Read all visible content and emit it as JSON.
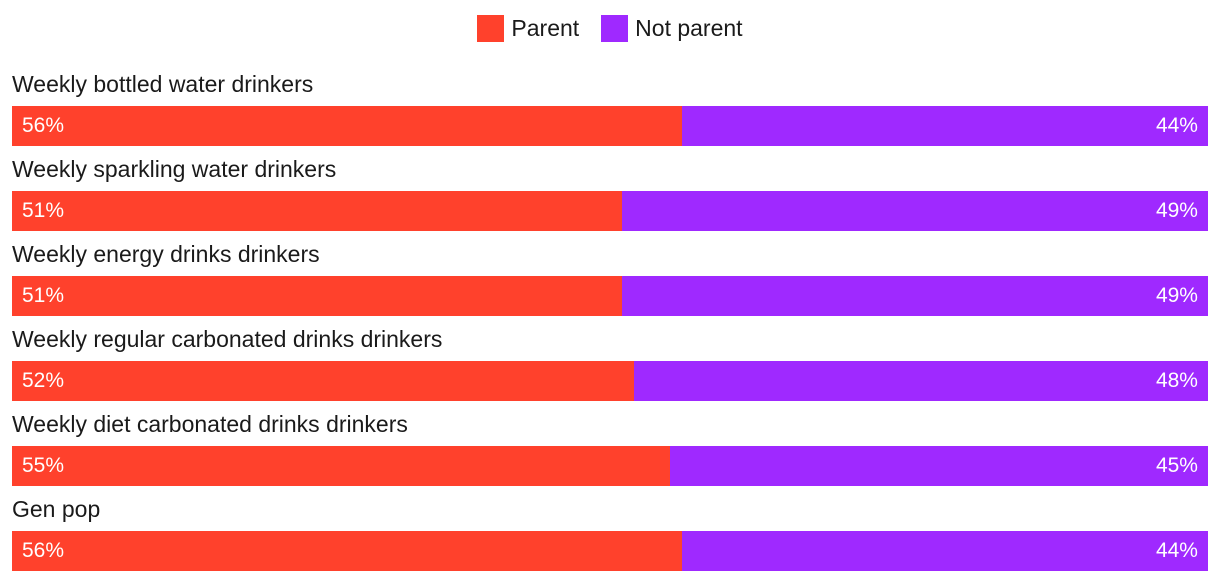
{
  "chart_data": {
    "type": "bar",
    "orientation": "horizontal",
    "stacked": "percent",
    "title": "",
    "xlabel": "",
    "ylabel": "",
    "legend_position": "top-center",
    "grid": false,
    "categories": [
      "Weekly bottled water drinkers",
      "Weekly sparkling water drinkers",
      "Weekly energy drinks drinkers",
      "Weekly regular carbonated drinks drinkers",
      "Weekly diet carbonated drinks drinkers",
      "Gen pop"
    ],
    "series": [
      {
        "name": "Parent",
        "color": "#ff412c",
        "values": [
          56,
          51,
          51,
          52,
          55,
          56
        ],
        "labels": [
          "56%",
          "51%",
          "51%",
          "52%",
          "55%",
          "56%"
        ]
      },
      {
        "name": "Not parent",
        "color": "#9f29ff",
        "values": [
          44,
          49,
          49,
          48,
          45,
          44
        ],
        "labels": [
          "44%",
          "49%",
          "49%",
          "48%",
          "45%",
          "44%"
        ]
      }
    ]
  }
}
